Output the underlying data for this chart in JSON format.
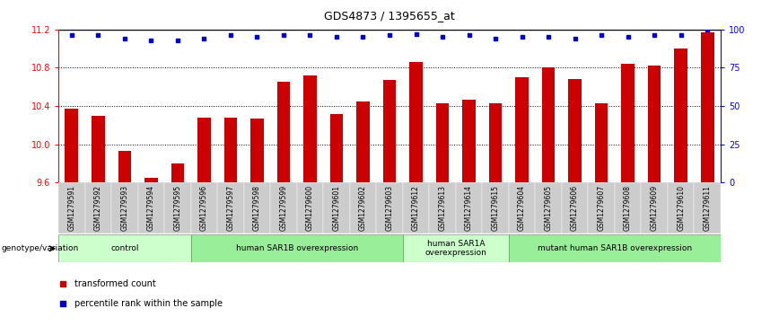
{
  "title": "GDS4873 / 1395655_at",
  "samples": [
    "GSM1279591",
    "GSM1279592",
    "GSM1279593",
    "GSM1279594",
    "GSM1279595",
    "GSM1279596",
    "GSM1279597",
    "GSM1279598",
    "GSM1279599",
    "GSM1279600",
    "GSM1279601",
    "GSM1279602",
    "GSM1279603",
    "GSM1279612",
    "GSM1279613",
    "GSM1279614",
    "GSM1279615",
    "GSM1279604",
    "GSM1279605",
    "GSM1279606",
    "GSM1279607",
    "GSM1279608",
    "GSM1279609",
    "GSM1279610",
    "GSM1279611"
  ],
  "bar_values": [
    10.37,
    10.3,
    9.93,
    9.65,
    9.8,
    10.28,
    10.28,
    10.27,
    10.65,
    10.72,
    10.32,
    10.45,
    10.67,
    10.86,
    10.43,
    10.47,
    10.43,
    10.7,
    10.8,
    10.68,
    10.43,
    10.84,
    10.82,
    11.0,
    11.17
  ],
  "percentile_values": [
    96,
    96,
    94,
    93,
    93,
    94,
    96,
    95,
    96,
    96,
    95,
    95,
    96,
    97,
    95,
    96,
    94,
    95,
    95,
    94,
    96,
    95,
    96,
    96,
    100
  ],
  "bar_color": "#cc0000",
  "percentile_color": "#0000cc",
  "ylim_left": [
    9.6,
    11.2
  ],
  "ylim_right": [
    0,
    100
  ],
  "yticks_left": [
    9.6,
    10.0,
    10.4,
    10.8,
    11.2
  ],
  "yticks_right": [
    0,
    25,
    50,
    75,
    100
  ],
  "grid_values": [
    10.0,
    10.4,
    10.8
  ],
  "groups": [
    {
      "label": "control",
      "start": 0,
      "end": 5,
      "color": "#ccffcc"
    },
    {
      "label": "human SAR1B overexpression",
      "start": 5,
      "end": 13,
      "color": "#99ee99"
    },
    {
      "label": "human SAR1A\noverexpression",
      "start": 13,
      "end": 17,
      "color": "#ccffcc"
    },
    {
      "label": "mutant human SAR1B overexpression",
      "start": 17,
      "end": 25,
      "color": "#99ee99"
    }
  ],
  "genotype_label": "genotype/variation",
  "legend_items": [
    {
      "label": "transformed count",
      "color": "#cc0000"
    },
    {
      "label": "percentile rank within the sample",
      "color": "#0000cc"
    }
  ],
  "xticklabel_bg": "#cccccc",
  "spine_color": "#888888"
}
